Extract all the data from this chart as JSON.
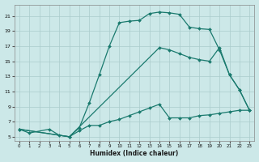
{
  "xlabel": "Humidex (Indice chaleur)",
  "bg_color": "#cce8e8",
  "grid_color": "#aacccc",
  "line_color": "#1a7a6e",
  "xlim": [
    -0.5,
    23.5
  ],
  "ylim": [
    4.5,
    22.5
  ],
  "xticks": [
    0,
    1,
    2,
    3,
    4,
    5,
    6,
    7,
    8,
    9,
    10,
    11,
    12,
    13,
    14,
    15,
    16,
    17,
    18,
    19,
    20,
    21,
    22,
    23
  ],
  "yticks": [
    5,
    7,
    9,
    11,
    13,
    15,
    17,
    19,
    21
  ],
  "line1_x": [
    0,
    1,
    3,
    4,
    5,
    6,
    7,
    8,
    9,
    10,
    11,
    12,
    13,
    14,
    15,
    16,
    17,
    18,
    19,
    20,
    21,
    22,
    23
  ],
  "line1_y": [
    6,
    5.5,
    6,
    5.2,
    5.0,
    6.2,
    9.5,
    13.2,
    17.0,
    20.1,
    20.3,
    20.4,
    21.3,
    21.5,
    21.4,
    21.2,
    19.5,
    19.3,
    19.2,
    16.5,
    13.2,
    11.2,
    8.5
  ],
  "line2_x": [
    0,
    5,
    14,
    15,
    16,
    17,
    18,
    19,
    20,
    21,
    22,
    23
  ],
  "line2_y": [
    6,
    5.0,
    16.8,
    16.5,
    16.0,
    15.5,
    15.2,
    15.0,
    16.8,
    13.2,
    11.2,
    8.5
  ],
  "line3_x": [
    0,
    5,
    6,
    7,
    8,
    9,
    10,
    11,
    12,
    13,
    14,
    15,
    16,
    17,
    18,
    19,
    20,
    21,
    22,
    23
  ],
  "line3_y": [
    6,
    5.0,
    5.8,
    6.5,
    6.5,
    7.0,
    7.3,
    7.8,
    8.3,
    8.8,
    9.3,
    7.5,
    7.5,
    7.5,
    7.8,
    7.9,
    8.1,
    8.3,
    8.5,
    8.5
  ]
}
